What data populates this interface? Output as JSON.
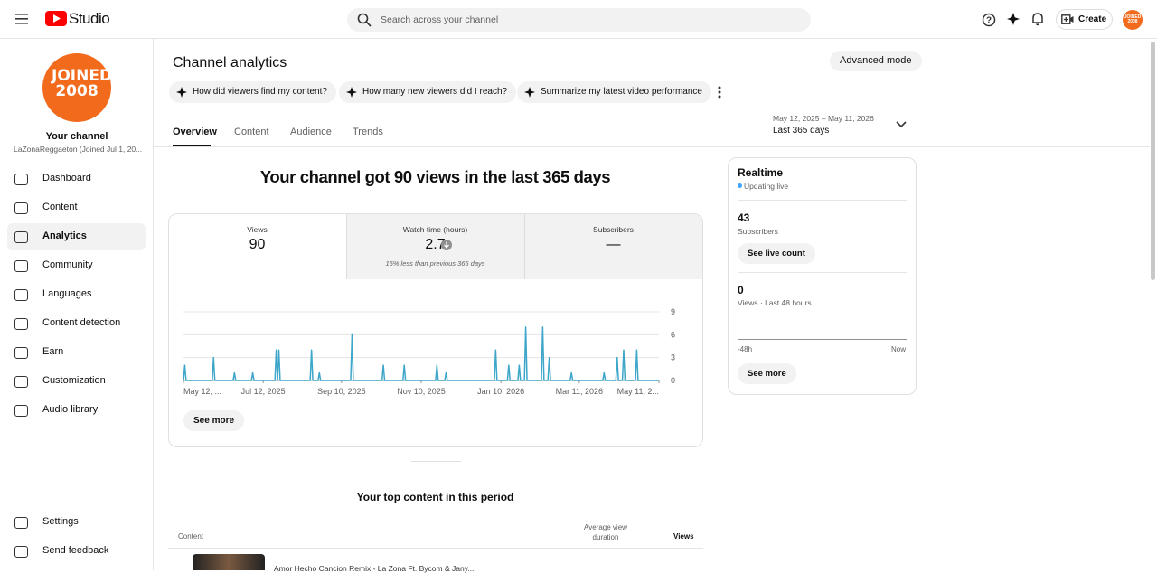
{
  "header": {
    "logo": "Studio",
    "search_placeholder": "Search across your channel",
    "create": "Create",
    "avatar": "JOINED 2008"
  },
  "sidebar": {
    "avatar": "JOINED 2008",
    "channel_title": "Your channel",
    "channel_sub": "LaZonaReggaeton (Joined Jul 1, 20...",
    "nav": [
      "Dashboard",
      "Content",
      "Analytics",
      "Community",
      "Languages",
      "Content detection",
      "Earn",
      "Customization",
      "Audio library"
    ],
    "footer": [
      "Settings",
      "Send feedback"
    ]
  },
  "page": {
    "title": "Channel analytics",
    "advanced_mode": "Advanced mode",
    "chips": [
      "How did viewers find my content?",
      "How many new viewers did I reach?",
      "Summarize my latest video performance"
    ],
    "tabs": [
      "Overview",
      "Content",
      "Audience",
      "Trends"
    ],
    "date_range": "May 12, 2025 – May 11, 2026",
    "date_label": "Last 365 days",
    "headline": "Your channel got 90 views in the last 365 days"
  },
  "metrics": [
    {
      "label": "Views",
      "value": "90"
    },
    {
      "label": "Watch time (hours)",
      "value": "2.7",
      "note": "15% less than previous 365 days"
    },
    {
      "label": "Subscribers",
      "value": "—"
    }
  ],
  "chart_data": {
    "type": "line",
    "x": [
      "2025-05-12",
      "2025-05-13",
      "2025-05-14",
      "2025-06-03",
      "2025-06-04",
      "2025-06-05",
      "2025-06-19",
      "2025-06-20",
      "2025-06-21",
      "2025-07-03",
      "2025-07-04",
      "2025-07-05",
      "2025-07-21",
      "2025-07-22",
      "2025-07-23",
      "2025-07-24",
      "2025-07-25",
      "2025-08-17",
      "2025-08-18",
      "2025-08-19",
      "2025-08-23",
      "2025-08-24",
      "2025-08-25",
      "2025-09-17",
      "2025-09-18",
      "2025-09-19",
      "2025-10-11",
      "2025-10-12",
      "2025-10-13",
      "2025-10-27",
      "2025-10-28",
      "2025-10-29",
      "2025-11-21",
      "2025-11-22",
      "2025-11-23",
      "2025-11-28",
      "2025-11-29",
      "2025-11-30",
      "2026-01-05",
      "2026-01-06",
      "2026-01-07",
      "2026-01-15",
      "2026-01-16",
      "2026-01-17",
      "2026-01-23",
      "2026-01-24",
      "2026-01-25",
      "2026-01-28",
      "2026-01-29",
      "2026-01-30",
      "2026-02-10",
      "2026-02-11",
      "2026-02-12",
      "2026-02-15",
      "2026-02-16",
      "2026-02-17",
      "2026-03-04",
      "2026-03-05",
      "2026-03-06",
      "2026-03-29",
      "2026-03-30",
      "2026-03-31",
      "2026-04-08",
      "2026-04-09",
      "2026-04-10",
      "2026-04-13",
      "2026-04-14",
      "2026-04-15",
      "2026-04-23",
      "2026-04-24",
      "2026-04-25",
      "2026-05-11"
    ],
    "series": [
      {
        "name": "Views",
        "color": "#3ea6c9",
        "values": [
          0,
          2,
          0,
          0,
          3,
          0,
          0,
          1,
          0,
          0,
          1,
          0,
          0,
          4,
          0,
          4,
          0,
          0,
          4,
          0,
          0,
          1,
          0,
          0,
          6,
          0,
          0,
          2,
          0,
          0,
          2,
          0,
          0,
          2,
          0,
          0,
          1,
          0,
          0,
          4,
          0,
          0,
          2,
          0,
          0,
          2,
          0,
          0,
          7,
          0,
          0,
          7,
          0,
          0,
          3,
          0,
          0,
          1,
          0,
          0,
          1,
          0,
          0,
          3,
          0,
          0,
          4,
          0,
          0,
          4,
          0,
          0
        ]
      }
    ],
    "xlim": [
      "2025-05-12",
      "2026-05-11"
    ],
    "xticks": [
      {
        "value": "2025-05-12",
        "label": "May 12, ..."
      },
      {
        "value": "2025-07-12",
        "label": "Jul 12, 2025"
      },
      {
        "value": "2025-09-10",
        "label": "Sep 10, 2025"
      },
      {
        "value": "2025-11-10",
        "label": "Nov 10, 2025"
      },
      {
        "value": "2026-01-10",
        "label": "Jan 10, 2026"
      },
      {
        "value": "2026-03-11",
        "label": "Mar 11, 2026"
      },
      {
        "value": "2026-05-11",
        "label": "May 11, 2..."
      }
    ],
    "ylim": [
      0,
      9
    ],
    "yticks": [
      0,
      3,
      6,
      9
    ],
    "grid": true
  },
  "see_more": "See more",
  "realtime": {
    "title": "Realtime",
    "status": "Updating live",
    "subscribers": "43",
    "subscribers_label": "Subscribers",
    "live_count": "See live count",
    "views": "0",
    "views_label": "Views · Last 48 hours",
    "axis_start": "-48h",
    "axis_end": "Now",
    "see_more": "See more"
  },
  "top_content": {
    "title": "Your top content in this period",
    "columns": [
      "Content",
      "Average view duration",
      "Views"
    ],
    "rows": [
      {
        "title": "Amor Hecho Cancion Remix - La Zona Ft. Bycom & Jany..."
      }
    ]
  }
}
